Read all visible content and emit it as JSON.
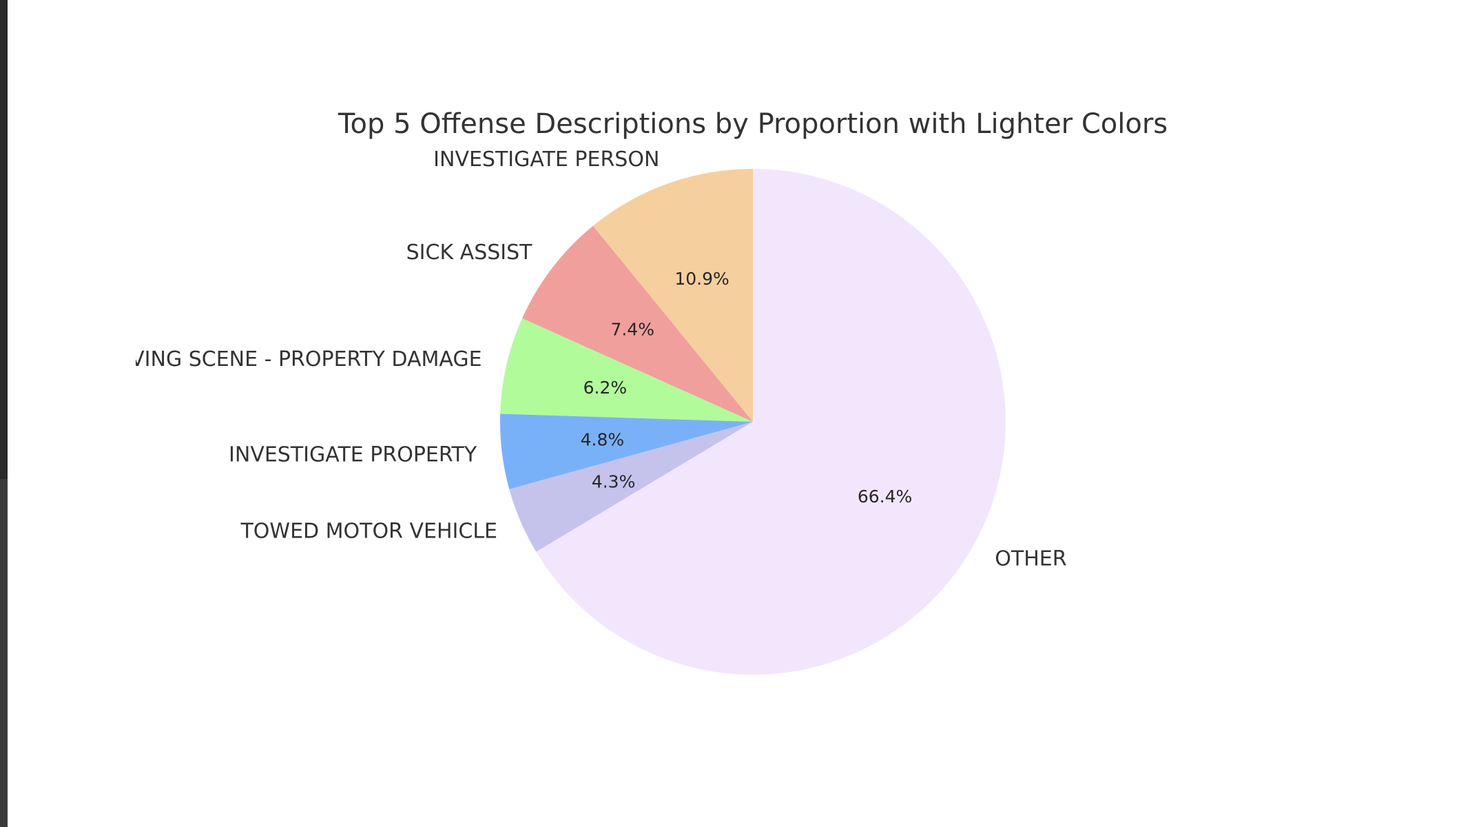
{
  "chart_data": {
    "type": "pie",
    "title": "Top 5 Offense Descriptions by Proportion with Lighter Colors",
    "start_angle_deg": 90,
    "direction": "counterclockwise",
    "slices": [
      {
        "label": "INVESTIGATE PERSON",
        "value": 10.9,
        "pct_label": "10.9%",
        "color": "#f6cf9f"
      },
      {
        "label": "SICK ASSIST",
        "value": 7.4,
        "pct_label": "7.4%",
        "color": "#f19f9c"
      },
      {
        "label": "LEAVING SCENE - PROPERTY DAMAGE",
        "value": 6.2,
        "pct_label": "6.2%",
        "color": "#b1fb9b"
      },
      {
        "label": "INVESTIGATE PROPERTY",
        "value": 4.8,
        "pct_label": "4.8%",
        "color": "#79b1f9"
      },
      {
        "label": "TOWED MOTOR VEHICLE",
        "value": 4.3,
        "pct_label": "4.3%",
        "color": "#c5c3ec"
      },
      {
        "label": "OTHER",
        "value": 66.4,
        "pct_label": "66.4%",
        "color": "#f2e6fc"
      }
    ]
  }
}
